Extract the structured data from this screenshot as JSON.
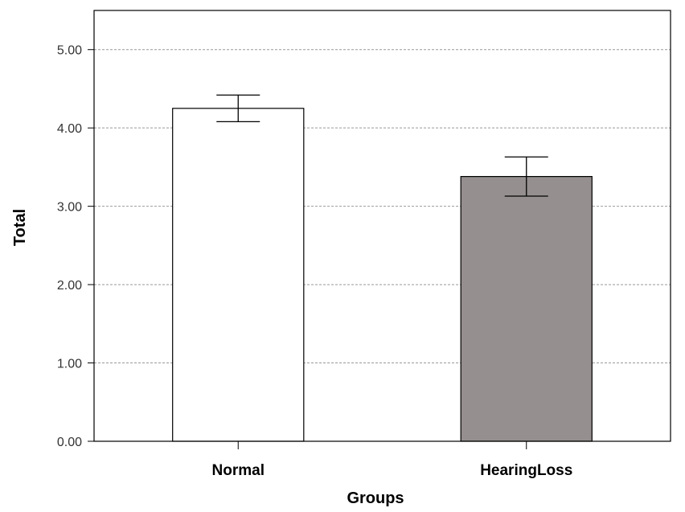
{
  "chart_data": {
    "type": "bar",
    "title": "",
    "xlabel": "Groups",
    "ylabel": "Total",
    "categories": [
      "Normal",
      "HearingLoss"
    ],
    "values": [
      4.25,
      3.38
    ],
    "error_bars": [
      {
        "low": 4.08,
        "high": 4.42
      },
      {
        "low": 3.13,
        "high": 3.63
      }
    ],
    "ylim": [
      0,
      5.5
    ],
    "yticks": [
      0,
      1,
      2,
      3,
      4,
      5
    ],
    "ytick_labels": [
      "0.00",
      "1.00",
      "2.00",
      "3.00",
      "4.00",
      "5.00"
    ],
    "grid": true,
    "colors": {
      "bars": [
        "#ffffff",
        "#958f8f"
      ],
      "bar_stroke": "#000000",
      "grid": "#999999",
      "axis": "#000000"
    }
  }
}
